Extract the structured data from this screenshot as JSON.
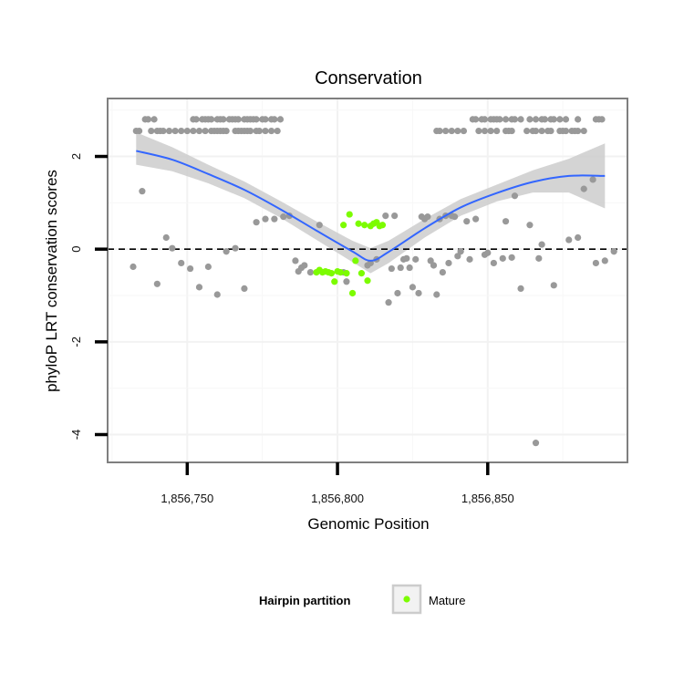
{
  "chart_data": {
    "type": "scatter",
    "title": "Conservation",
    "xlabel": "Genomic Position",
    "ylabel": "phyloP LRT conservation scores",
    "xlim": [
      1856723.5,
      1856896.5
    ],
    "ylim": [
      -4.6,
      3.25
    ],
    "x_ticks": [
      1856750,
      1856800,
      1856850
    ],
    "x_tick_labels": [
      "1,856,750",
      "1,856,800",
      "1,856,850"
    ],
    "y_ticks": [
      -4,
      -2,
      0,
      2
    ],
    "y_tick_labels": [
      "-4",
      "-2",
      "0",
      "2"
    ],
    "reference_line": {
      "y": 0,
      "style": "dashed"
    },
    "grid": true,
    "legend": {
      "title": "Hairpin partition",
      "position": "bottom",
      "entries": [
        {
          "label": "Mature",
          "color": "#7cfc00"
        }
      ]
    },
    "colors": {
      "other": "#999999",
      "mature": "#7cfc00",
      "smooth": "#3366ff",
      "band": "#cccccc"
    },
    "series": [
      {
        "group": "other",
        "points": [
          [
            1856733,
            2.55
          ],
          [
            1856734,
            2.55
          ],
          [
            1856736,
            2.8
          ],
          [
            1856737,
            2.8
          ],
          [
            1856738,
            2.55
          ],
          [
            1856739,
            2.8
          ],
          [
            1856740,
            2.55
          ],
          [
            1856741,
            2.55
          ],
          [
            1856742,
            2.55
          ],
          [
            1856744,
            2.55
          ],
          [
            1856746,
            2.55
          ],
          [
            1856748,
            2.55
          ],
          [
            1856750,
            2.55
          ],
          [
            1856752,
            2.55
          ],
          [
            1856754,
            2.55
          ],
          [
            1856756,
            2.55
          ],
          [
            1856758,
            2.55
          ],
          [
            1856759,
            2.55
          ],
          [
            1856760,
            2.55
          ],
          [
            1856761,
            2.55
          ],
          [
            1856762,
            2.55
          ],
          [
            1856763,
            2.55
          ],
          [
            1856766,
            2.55
          ],
          [
            1856767,
            2.55
          ],
          [
            1856768,
            2.55
          ],
          [
            1856769,
            2.55
          ],
          [
            1856770,
            2.55
          ],
          [
            1856771,
            2.55
          ],
          [
            1856773,
            2.55
          ],
          [
            1856774,
            2.55
          ],
          [
            1856776,
            2.55
          ],
          [
            1856778,
            2.55
          ],
          [
            1856780,
            2.55
          ],
          [
            1856752,
            2.8
          ],
          [
            1856753,
            2.8
          ],
          [
            1856755,
            2.8
          ],
          [
            1856756,
            2.8
          ],
          [
            1856757,
            2.8
          ],
          [
            1856758,
            2.8
          ],
          [
            1856760,
            2.8
          ],
          [
            1856761,
            2.8
          ],
          [
            1856762,
            2.8
          ],
          [
            1856764,
            2.8
          ],
          [
            1856765,
            2.8
          ],
          [
            1856766,
            2.8
          ],
          [
            1856767,
            2.8
          ],
          [
            1856769,
            2.8
          ],
          [
            1856770,
            2.8
          ],
          [
            1856771,
            2.8
          ],
          [
            1856772,
            2.8
          ],
          [
            1856773,
            2.8
          ],
          [
            1856775,
            2.8
          ],
          [
            1856776,
            2.8
          ],
          [
            1856778,
            2.8
          ],
          [
            1856779,
            2.8
          ],
          [
            1856781,
            2.8
          ],
          [
            1856833,
            2.55
          ],
          [
            1856834,
            2.55
          ],
          [
            1856836,
            2.55
          ],
          [
            1856838,
            2.55
          ],
          [
            1856840,
            2.55
          ],
          [
            1856842,
            2.55
          ],
          [
            1856847,
            2.55
          ],
          [
            1856849,
            2.55
          ],
          [
            1856851,
            2.55
          ],
          [
            1856853,
            2.55
          ],
          [
            1856856,
            2.55
          ],
          [
            1856857,
            2.55
          ],
          [
            1856858,
            2.55
          ],
          [
            1856863,
            2.55
          ],
          [
            1856865,
            2.55
          ],
          [
            1856866,
            2.55
          ],
          [
            1856868,
            2.55
          ],
          [
            1856870,
            2.55
          ],
          [
            1856871,
            2.55
          ],
          [
            1856874,
            2.55
          ],
          [
            1856875,
            2.55
          ],
          [
            1856876,
            2.55
          ],
          [
            1856878,
            2.55
          ],
          [
            1856879,
            2.55
          ],
          [
            1856880,
            2.55
          ],
          [
            1856882,
            2.55
          ],
          [
            1856845,
            2.8
          ],
          [
            1856846,
            2.8
          ],
          [
            1856848,
            2.8
          ],
          [
            1856849,
            2.8
          ],
          [
            1856851,
            2.8
          ],
          [
            1856852,
            2.8
          ],
          [
            1856853,
            2.8
          ],
          [
            1856854,
            2.8
          ],
          [
            1856856,
            2.8
          ],
          [
            1856858,
            2.8
          ],
          [
            1856859,
            2.8
          ],
          [
            1856861,
            2.8
          ],
          [
            1856864,
            2.8
          ],
          [
            1856866,
            2.8
          ],
          [
            1856868,
            2.8
          ],
          [
            1856869,
            2.8
          ],
          [
            1856871,
            2.8
          ],
          [
            1856872,
            2.8
          ],
          [
            1856874,
            2.8
          ],
          [
            1856876,
            2.8
          ],
          [
            1856880,
            2.8
          ],
          [
            1856886,
            2.8
          ],
          [
            1856887,
            2.8
          ],
          [
            1856888,
            2.8
          ],
          [
            1856732,
            -0.38
          ],
          [
            1856735,
            1.25
          ],
          [
            1856740,
            -0.75
          ],
          [
            1856743,
            0.25
          ],
          [
            1856745,
            0.02
          ],
          [
            1856748,
            -0.3
          ],
          [
            1856751,
            -0.42
          ],
          [
            1856754,
            -0.82
          ],
          [
            1856757,
            -0.38
          ],
          [
            1856760,
            -0.98
          ],
          [
            1856763,
            -0.05
          ],
          [
            1856766,
            0.02
          ],
          [
            1856769,
            -0.85
          ],
          [
            1856773,
            0.58
          ],
          [
            1856776,
            0.65
          ],
          [
            1856779,
            0.65
          ],
          [
            1856782,
            0.7
          ],
          [
            1856784,
            0.72
          ],
          [
            1856786,
            -0.25
          ],
          [
            1856787,
            -0.48
          ],
          [
            1856788,
            -0.4
          ],
          [
            1856789,
            -0.35
          ],
          [
            1856791,
            -0.5
          ],
          [
            1856794,
            0.52
          ],
          [
            1856802,
            -0.5
          ],
          [
            1856803,
            -0.7
          ],
          [
            1856810,
            -0.35
          ],
          [
            1856811,
            -0.3
          ],
          [
            1856813,
            -0.22
          ],
          [
            1856816,
            0.72
          ],
          [
            1856817,
            -1.15
          ],
          [
            1856818,
            -0.42
          ],
          [
            1856819,
            0.72
          ],
          [
            1856820,
            -0.95
          ],
          [
            1856821,
            -0.4
          ],
          [
            1856822,
            -0.22
          ],
          [
            1856823,
            -0.2
          ],
          [
            1856824,
            -0.4
          ],
          [
            1856825,
            -0.82
          ],
          [
            1856826,
            -0.22
          ],
          [
            1856827,
            -0.95
          ],
          [
            1856828,
            0.7
          ],
          [
            1856829,
            0.65
          ],
          [
            1856830,
            0.7
          ],
          [
            1856831,
            -0.25
          ],
          [
            1856832,
            -0.35
          ],
          [
            1856833,
            -0.98
          ],
          [
            1856834,
            0.65
          ],
          [
            1856835,
            -0.5
          ],
          [
            1856836,
            0.72
          ],
          [
            1856837,
            -0.3
          ],
          [
            1856838,
            0.72
          ],
          [
            1856839,
            0.7
          ],
          [
            1856840,
            -0.15
          ],
          [
            1856841,
            -0.05
          ],
          [
            1856843,
            0.6
          ],
          [
            1856844,
            -0.22
          ],
          [
            1856846,
            0.65
          ],
          [
            1856849,
            -0.12
          ],
          [
            1856850,
            -0.08
          ],
          [
            1856852,
            -0.3
          ],
          [
            1856855,
            -0.2
          ],
          [
            1856856,
            0.6
          ],
          [
            1856858,
            -0.18
          ],
          [
            1856859,
            1.15
          ],
          [
            1856861,
            -0.85
          ],
          [
            1856864,
            0.52
          ],
          [
            1856866,
            -4.18
          ],
          [
            1856867,
            -0.2
          ],
          [
            1856868,
            0.1
          ],
          [
            1856872,
            -0.78
          ],
          [
            1856877,
            0.2
          ],
          [
            1856880,
            0.25
          ],
          [
            1856882,
            1.3
          ],
          [
            1856885,
            1.5
          ],
          [
            1856886,
            -0.3
          ],
          [
            1856889,
            -0.25
          ],
          [
            1856892,
            -0.05
          ]
        ]
      },
      {
        "group": "mature",
        "name": "Mature",
        "points": [
          [
            1856793,
            -0.5
          ],
          [
            1856794,
            -0.45
          ],
          [
            1856795,
            -0.5
          ],
          [
            1856796,
            -0.48
          ],
          [
            1856797,
            -0.5
          ],
          [
            1856798,
            -0.52
          ],
          [
            1856799,
            -0.7
          ],
          [
            1856800,
            -0.48
          ],
          [
            1856801,
            -0.5
          ],
          [
            1856802,
            0.52
          ],
          [
            1856803,
            -0.52
          ],
          [
            1856804,
            0.75
          ],
          [
            1856805,
            -0.95
          ],
          [
            1856806,
            -0.25
          ],
          [
            1856807,
            0.55
          ],
          [
            1856808,
            -0.52
          ],
          [
            1856809,
            0.52
          ],
          [
            1856810,
            -0.68
          ],
          [
            1856811,
            0.5
          ],
          [
            1856812,
            0.55
          ],
          [
            1856813,
            0.58
          ],
          [
            1856814,
            0.5
          ],
          [
            1856815,
            0.52
          ]
        ]
      }
    ],
    "smooth": {
      "x": [
        1856733,
        1856745,
        1856757,
        1856769,
        1856781,
        1856793,
        1856805,
        1856811,
        1856817,
        1856829,
        1856841,
        1856853,
        1856865,
        1856877,
        1856889
      ],
      "y": [
        2.12,
        1.93,
        1.62,
        1.28,
        0.86,
        0.4,
        -0.05,
        -0.25,
        -0.06,
        0.45,
        0.9,
        1.21,
        1.45,
        1.58,
        1.58
      ],
      "lower": [
        1.82,
        1.68,
        1.42,
        1.1,
        0.68,
        0.2,
        -0.28,
        -0.52,
        -0.3,
        0.25,
        0.72,
        1.03,
        1.22,
        1.22,
        0.88
      ],
      "upper": [
        2.52,
        2.2,
        1.82,
        1.46,
        1.04,
        0.6,
        0.18,
        0.02,
        0.18,
        0.65,
        1.08,
        1.39,
        1.7,
        1.95,
        2.28
      ]
    }
  }
}
